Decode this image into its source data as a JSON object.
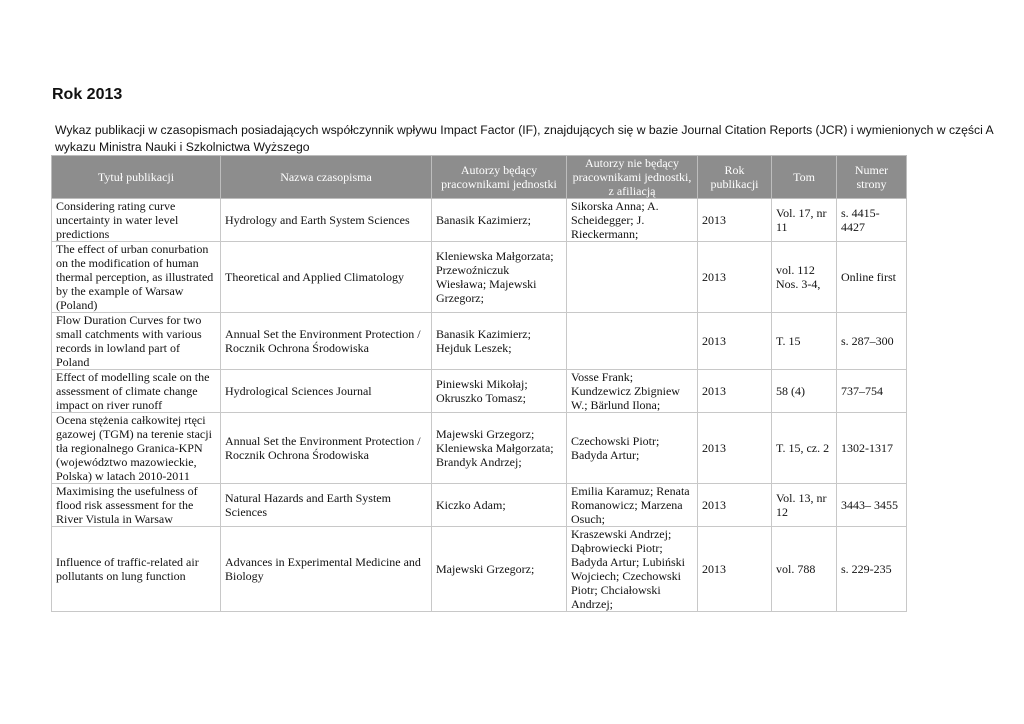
{
  "title": "Rok 2013",
  "intro": "Wykaz publikacji w czasopismach posiadających współczynnik wpływu Impact Factor (IF), znajdujących się w bazie Journal Citation Reports (JCR) i wymienionych w części A wykazu Ministra Nauki i Szkolnictwa Wyższego",
  "table": {
    "headers": [
      "Tytuł publikacji",
      "Nazwa czasopisma",
      "Autorzy będący pracownikami jednostki",
      "Autorzy nie  będący pracownikami jednostki, z afiliacją",
      "Rok publikacji",
      "Tom",
      "Numer strony"
    ],
    "rows": [
      [
        "Considering rating curve uncertainty in water level predictions",
        "Hydrology and Earth System Sciences",
        "Banasik Kazimierz;",
        "Sikorska Anna; A. Scheidegger; J. Rieckermann;",
        "2013",
        " Vol. 17, nr 11",
        "s. 4415-4427"
      ],
      [
        "The effect of urban conurbation on the modification of human thermal perception, as illustrated by the example of Warsaw (Poland)",
        "Theoretical and Applied Climatology",
        "Kleniewska Małgorzata; Przewoźniczuk Wiesława; Majewski Grzegorz;",
        "",
        "2013",
        "vol. 112 Nos. 3-4,",
        "Online first"
      ],
      [
        "Flow Duration Curves for two small catchments with various records in lowland part of Poland",
        "Annual Set the Environment Protection / Rocznik Ochrona Środowiska",
        "Banasik Kazimierz; Hejduk Leszek;",
        "",
        "2013",
        "T. 15",
        "s. 287–300"
      ],
      [
        "Effect of modelling scale on the assessment of climate change impact on river runoff",
        "Hydrological Sciences Journal",
        "Piniewski Mikołaj; Okruszko Tomasz;",
        "Vosse Frank; Kundzewicz Zbigniew W.; Bärlund Ilona;",
        "2013",
        "58 (4)",
        "737–754"
      ],
      [
        "Ocena stężenia całkowitej rtęci gazowej (TGM) na terenie stacji tła regionalnego Granica-KPN (województwo mazowieckie, Polska) w latach 2010-2011",
        "Annual Set the Environment Protection / Rocznik Ochrona Środowiska",
        "Majewski Grzegorz; Kleniewska Małgorzata; Brandyk Andrzej;",
        "Czechowski Piotr; Badyda Artur;",
        "2013",
        "T. 15, cz. 2",
        "1302-1317"
      ],
      [
        "Maximising the usefulness of flood risk assessment for the River Vistula in Warsaw",
        "Natural Hazards and Earth System Sciences",
        "Kiczko Adam;",
        "Emilia Karamuz; Renata Romanowicz; Marzena Osuch;",
        "2013",
        "Vol. 13, nr 12",
        "3443– 3455"
      ],
      [
        "Influence of traffic-related air pollutants on lung function",
        "Advances in Experimental Medicine and Biology",
        "Majewski Grzegorz;",
        "Kraszewski Andrzej; Dąbrowiecki Piotr; Badyda Artur; Lubiński Wojciech; Czechowski Piotr; Chciałowski Andrzej;",
        "2013",
        "vol. 788",
        "s. 229-235"
      ]
    ]
  }
}
